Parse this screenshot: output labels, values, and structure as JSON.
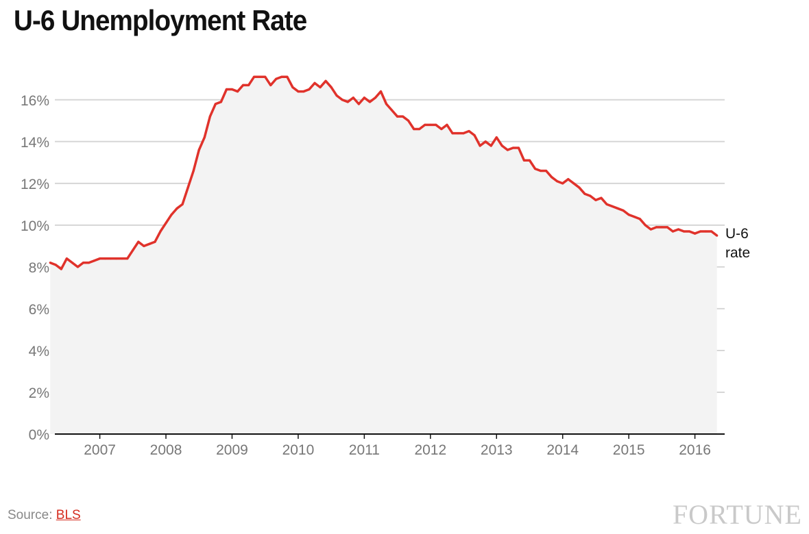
{
  "title": "U-6 Unemployment Rate",
  "source_label": "Source:",
  "source_link": "BLS",
  "brand": "FORTUNE",
  "colors": {
    "line": "#e0322b",
    "area": "#f3f3f3",
    "grid": "#d6d6d6",
    "axis": "#111111",
    "tick": "#777777"
  },
  "chart_data": {
    "type": "line",
    "title": "U-6 Unemployment Rate",
    "xlabel": "",
    "ylabel": "",
    "ylim": [
      0,
      17.5
    ],
    "xlim": [
      2006.82,
      2016.95
    ],
    "yticks": [
      0,
      2,
      4,
      6,
      8,
      10,
      12,
      14,
      16
    ],
    "ytick_labels": [
      "0%",
      "2%",
      "4%",
      "6%",
      "8%",
      "10%",
      "12%",
      "14%",
      "16%"
    ],
    "xticks": [
      2007,
      2008,
      2009,
      2010,
      2011,
      2012,
      2013,
      2014,
      2015,
      2016
    ],
    "xtick_labels": [
      "2007",
      "2008",
      "2009",
      "2010",
      "2011",
      "2012",
      "2013",
      "2014",
      "2015",
      "2016"
    ],
    "grid": true,
    "fill_area": true,
    "series": [
      {
        "name": "U-6 rate",
        "x_start": "2006-10",
        "frequency": "monthly",
        "values": [
          8.2,
          8.1,
          7.9,
          8.4,
          8.2,
          8.0,
          8.2,
          8.2,
          8.3,
          8.4,
          8.4,
          8.4,
          8.4,
          8.4,
          8.4,
          8.8,
          9.2,
          9.0,
          9.1,
          9.2,
          9.7,
          10.1,
          10.5,
          10.8,
          11.0,
          11.8,
          12.6,
          13.6,
          14.2,
          15.2,
          15.8,
          15.9,
          16.5,
          16.5,
          16.4,
          16.7,
          16.7,
          17.1,
          17.1,
          17.1,
          16.7,
          17.0,
          17.1,
          17.1,
          16.6,
          16.4,
          16.4,
          16.5,
          16.8,
          16.6,
          16.9,
          16.6,
          16.2,
          16.0,
          15.9,
          16.1,
          15.8,
          16.1,
          15.9,
          16.1,
          16.4,
          15.8,
          15.5,
          15.2,
          15.2,
          15.0,
          14.6,
          14.6,
          14.8,
          14.8,
          14.8,
          14.6,
          14.8,
          14.4,
          14.4,
          14.4,
          14.5,
          14.3,
          13.8,
          14.0,
          13.8,
          14.2,
          13.8,
          13.6,
          13.7,
          13.7,
          13.1,
          13.1,
          12.7,
          12.6,
          12.6,
          12.3,
          12.1,
          12.0,
          12.2,
          12.0,
          11.8,
          11.5,
          11.4,
          11.2,
          11.3,
          11.0,
          10.9,
          10.8,
          10.7,
          10.5,
          10.4,
          10.3,
          10.0,
          9.8,
          9.9,
          9.9,
          9.9,
          9.7,
          9.8,
          9.7,
          9.7,
          9.6,
          9.7,
          9.7,
          9.7,
          9.5
        ]
      }
    ],
    "annotations": [
      {
        "text": "U-6 rate",
        "lines": [
          "U-6",
          "rate"
        ],
        "attach": "series-end"
      }
    ]
  }
}
